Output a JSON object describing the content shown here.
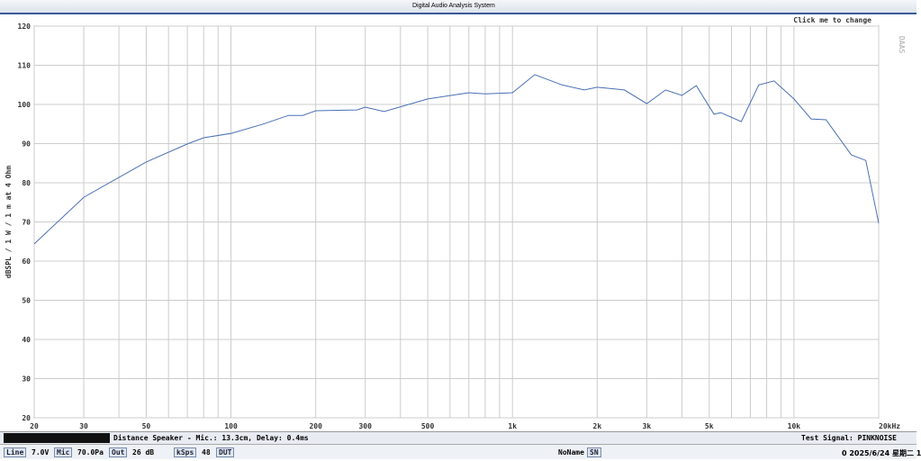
{
  "window": {
    "title": "Digital Audio Analysis System"
  },
  "chart_data": {
    "type": "line",
    "ylabel": "dBSPL / 1 W / 1 m at 4 Ohm",
    "button": "Click me to change",
    "brand": "DAAS",
    "x": [
      20,
      30,
      50,
      70,
      80,
      100,
      130,
      160,
      180,
      200,
      280,
      300,
      350,
      500,
      700,
      800,
      1000,
      1200,
      1500,
      1800,
      2000,
      2500,
      3000,
      3500,
      4000,
      4500,
      5200,
      5500,
      6500,
      7500,
      8500,
      10000,
      11500,
      13000,
      15000,
      16000,
      18000,
      20000
    ],
    "values": [
      64.4,
      76.3,
      85.3,
      89.9,
      91.5,
      92.6,
      95,
      97.2,
      97.2,
      98.4,
      98.6,
      99.3,
      98.2,
      101.4,
      103,
      102.7,
      103,
      107.6,
      105,
      103.7,
      104.4,
      103.7,
      100.2,
      103.7,
      102.3,
      104.8,
      97.5,
      97.9,
      95.6,
      105,
      106,
      101.4,
      96.3,
      96.1,
      89.9,
      87.1,
      85.7,
      69.7
    ],
    "color": "#4a6fb5",
    "xscale": "log",
    "xlim": [
      20,
      20000
    ],
    "ylim": [
      20,
      120
    ],
    "xticks": [
      20,
      30,
      50,
      100,
      200,
      300,
      500,
      {
        "value": 1000,
        "label": "1k"
      },
      {
        "value": 2000,
        "label": "2k"
      },
      {
        "value": 3000,
        "label": "3k"
      },
      {
        "value": 5000,
        "label": "5k"
      },
      {
        "value": 10000,
        "label": "10k"
      },
      {
        "value": 20000,
        "label": "20kHz"
      }
    ],
    "xminorticks": [
      40,
      60,
      70,
      80,
      90,
      400,
      600,
      700,
      800,
      900,
      4000,
      6000,
      7000,
      8000,
      9000
    ],
    "yticks": [
      20,
      30,
      40,
      50,
      60,
      70,
      80,
      90,
      100,
      110,
      120
    ],
    "grid": true
  },
  "status": {
    "info": "Distance Speaker - Mic.: 13.3cm, Delay: 0.4ms",
    "signal": "Test Signal: PINKNOISE"
  },
  "toolbar": {
    "items": [
      "Line",
      "7.0V",
      "Mic",
      "70.0Pa",
      "Out",
      "26 dB",
      "kSps",
      "48",
      "DUT"
    ],
    "name": "NoName",
    "sn": "SN",
    "clock": "0 2025/6/24 星期二 1"
  }
}
